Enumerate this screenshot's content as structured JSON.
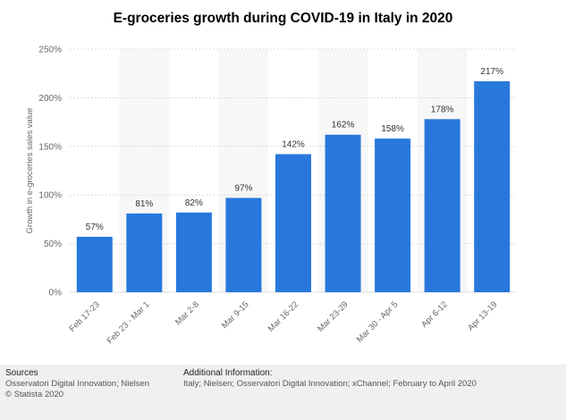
{
  "chart_data": {
    "type": "bar",
    "title": "E-groceries growth during COVID-19 in Italy in 2020",
    "xlabel": "",
    "ylabel": "Growth in e-groceries sales value",
    "categories": [
      "Feb 17-23",
      "Feb 23 - Mar 1",
      "Mar 2-8",
      "Mar 9-15",
      "Mar 16-22",
      "Mar 23-29",
      "Mar 30 - Apr 5",
      "Apr 6-12",
      "Apr 13-19"
    ],
    "values": [
      57,
      81,
      82,
      97,
      142,
      162,
      158,
      178,
      217
    ],
    "value_labels": [
      "57%",
      "81%",
      "82%",
      "97%",
      "142%",
      "162%",
      "158%",
      "178%",
      "217%"
    ],
    "ylim": [
      0,
      250
    ],
    "yticks": [
      0,
      50,
      100,
      150,
      200,
      250
    ],
    "ytick_labels": [
      "0%",
      "50%",
      "100%",
      "150%",
      "200%",
      "250%"
    ],
    "grid": true,
    "bar_color": "#2878dc",
    "legend": "none"
  },
  "footer": {
    "sources_heading": "Sources",
    "sources_line": "Osservatori Digital Innovation; Nielsen",
    "copyright": "© Statista 2020",
    "additional_heading": "Additional Information:",
    "additional_line": "Italy; Nielsen; Osservatori Digital Innovation; xChannel; February to April 2020"
  }
}
